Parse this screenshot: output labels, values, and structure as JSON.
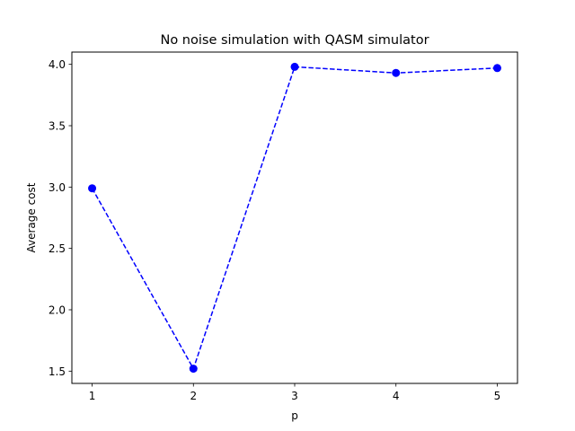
{
  "chart_data": {
    "type": "line",
    "title": "No noise simulation with QASM simulator",
    "xlabel": "p",
    "ylabel": "Average cost",
    "x": [
      1,
      2,
      3,
      4,
      5
    ],
    "series": [
      {
        "values": [
          2.99,
          1.52,
          3.98,
          3.93,
          3.97
        ],
        "color": "#0000ff",
        "line_style": "dashed",
        "marker": "circle"
      }
    ],
    "xlim": [
      0.8,
      5.2
    ],
    "ylim": [
      1.4,
      4.1
    ],
    "xticks": [
      1,
      2,
      3,
      4,
      5
    ],
    "xtick_labels": [
      "1",
      "2",
      "3",
      "4",
      "5"
    ],
    "yticks": [
      1.5,
      2.0,
      2.5,
      3.0,
      3.5,
      4.0
    ],
    "ytick_labels": [
      "1.5",
      "2.0",
      "2.5",
      "3.0",
      "3.5",
      "4.0"
    ],
    "grid": false,
    "legend": "none"
  }
}
